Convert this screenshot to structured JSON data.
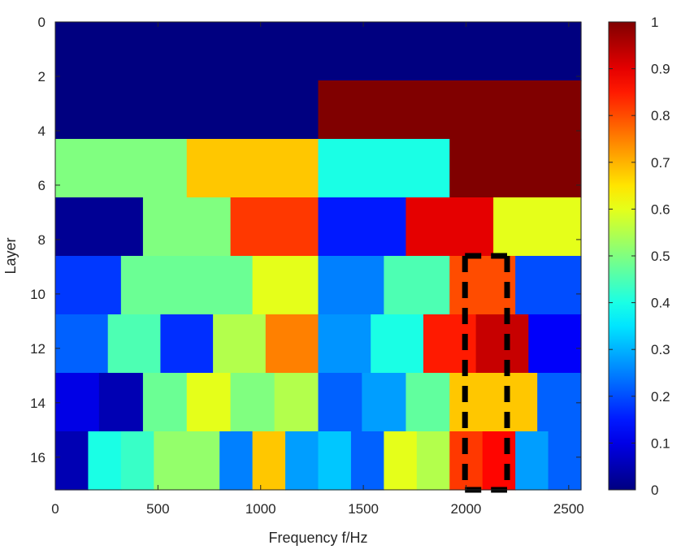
{
  "chart_data": {
    "type": "heatmap",
    "title": "",
    "xlabel": "Frequency f/Hz",
    "ylabel": "Layer",
    "xlim": [
      0,
      2560
    ],
    "ylim": [
      0,
      17.2
    ],
    "y_reversed": true,
    "x_ticks": [
      0,
      500,
      1000,
      1500,
      2000,
      2500
    ],
    "y_ticks": [
      0,
      2,
      4,
      6,
      8,
      10,
      12,
      14,
      16
    ],
    "colormap": "jet",
    "color_range": [
      0,
      1
    ],
    "colorbar_ticks": [
      0,
      0.1,
      0.2,
      0.3,
      0.4,
      0.5,
      0.6,
      0.7,
      0.8,
      0.9,
      1
    ],
    "rows": [
      {
        "y": [
          0,
          2.15
        ],
        "segments": [
          {
            "x": [
              0,
              2560
            ],
            "value": 0.0
          }
        ]
      },
      {
        "y": [
          2.15,
          4.3
        ],
        "segments": [
          {
            "x": [
              0,
              1280
            ],
            "value": 0.0
          },
          {
            "x": [
              1280,
              2560
            ],
            "value": 1.0
          }
        ]
      },
      {
        "y": [
          4.3,
          6.45
        ],
        "segments": [
          {
            "x": [
              0,
              640
            ],
            "value": 0.5
          },
          {
            "x": [
              640,
              1280
            ],
            "value": 0.68
          },
          {
            "x": [
              1280,
              1920
            ],
            "value": 0.4
          },
          {
            "x": [
              1920,
              2560
            ],
            "value": 1.0
          }
        ]
      },
      {
        "y": [
          6.45,
          8.6
        ],
        "segments": [
          {
            "x": [
              0,
              427
            ],
            "value": 0.02
          },
          {
            "x": [
              427,
              853
            ],
            "value": 0.5
          },
          {
            "x": [
              853,
              1280
            ],
            "value": 0.82
          },
          {
            "x": [
              1280,
              1707
            ],
            "value": 0.15
          },
          {
            "x": [
              1707,
              2133
            ],
            "value": 0.9
          },
          {
            "x": [
              2133,
              2560
            ],
            "value": 0.6
          }
        ]
      },
      {
        "y": [
          8.6,
          10.75
        ],
        "segments": [
          {
            "x": [
              0,
              320
            ],
            "value": 0.18
          },
          {
            "x": [
              320,
              960
            ],
            "value": 0.48
          },
          {
            "x": [
              960,
              1280
            ],
            "value": 0.6
          },
          {
            "x": [
              1280,
              1600
            ],
            "value": 0.25
          },
          {
            "x": [
              1600,
              1920
            ],
            "value": 0.45
          },
          {
            "x": [
              1920,
              2240
            ],
            "value": 0.8
          },
          {
            "x": [
              2240,
              2560
            ],
            "value": 0.2
          }
        ]
      },
      {
        "y": [
          10.75,
          12.9
        ],
        "segments": [
          {
            "x": [
              0,
              256
            ],
            "value": 0.22
          },
          {
            "x": [
              256,
              512
            ],
            "value": 0.45
          },
          {
            "x": [
              512,
              768
            ],
            "value": 0.17
          },
          {
            "x": [
              768,
              1024
            ],
            "value": 0.55
          },
          {
            "x": [
              1024,
              1280
            ],
            "value": 0.75
          },
          {
            "x": [
              1280,
              1536
            ],
            "value": 0.27
          },
          {
            "x": [
              1536,
              1792
            ],
            "value": 0.4
          },
          {
            "x": [
              1792,
              2048
            ],
            "value": 0.85
          },
          {
            "x": [
              2048,
              2304
            ],
            "value": 0.93
          },
          {
            "x": [
              2304,
              2560
            ],
            "value": 0.12
          }
        ]
      },
      {
        "y": [
          12.9,
          15.05
        ],
        "segments": [
          {
            "x": [
              0,
              213
            ],
            "value": 0.1
          },
          {
            "x": [
              213,
              427
            ],
            "value": 0.05
          },
          {
            "x": [
              427,
              640
            ],
            "value": 0.48
          },
          {
            "x": [
              640,
              853
            ],
            "value": 0.6
          },
          {
            "x": [
              853,
              1067
            ],
            "value": 0.5
          },
          {
            "x": [
              1067,
              1280
            ],
            "value": 0.55
          },
          {
            "x": [
              1280,
              1493
            ],
            "value": 0.22
          },
          {
            "x": [
              1493,
              1707
            ],
            "value": 0.28
          },
          {
            "x": [
              1707,
              1920
            ],
            "value": 0.47
          },
          {
            "x": [
              1920,
              2347
            ],
            "value": 0.68
          },
          {
            "x": [
              2347,
              2560
            ],
            "value": 0.22
          }
        ]
      },
      {
        "y": [
          15.05,
          17.2
        ],
        "segments": [
          {
            "x": [
              0,
              160
            ],
            "value": 0.05
          },
          {
            "x": [
              160,
              320
            ],
            "value": 0.4
          },
          {
            "x": [
              320,
              480
            ],
            "value": 0.43
          },
          {
            "x": [
              480,
              800
            ],
            "value": 0.52
          },
          {
            "x": [
              800,
              960
            ],
            "value": 0.25
          },
          {
            "x": [
              960,
              1120
            ],
            "value": 0.68
          },
          {
            "x": [
              1120,
              1280
            ],
            "value": 0.28
          },
          {
            "x": [
              1280,
              1440
            ],
            "value": 0.32
          },
          {
            "x": [
              1440,
              1600
            ],
            "value": 0.22
          },
          {
            "x": [
              1600,
              1760
            ],
            "value": 0.6
          },
          {
            "x": [
              1760,
              1920
            ],
            "value": 0.55
          },
          {
            "x": [
              1920,
              2080
            ],
            "value": 0.82
          },
          {
            "x": [
              2080,
              2240
            ],
            "value": 0.87
          },
          {
            "x": [
              2240,
              2400
            ],
            "value": 0.28
          },
          {
            "x": [
              2400,
              2560
            ],
            "value": 0.22
          }
        ]
      }
    ],
    "annotations": [
      {
        "type": "dashed-box",
        "x": [
          1995,
          2200
        ],
        "y": [
          8.6,
          17.2
        ],
        "color": "#000000"
      }
    ]
  }
}
